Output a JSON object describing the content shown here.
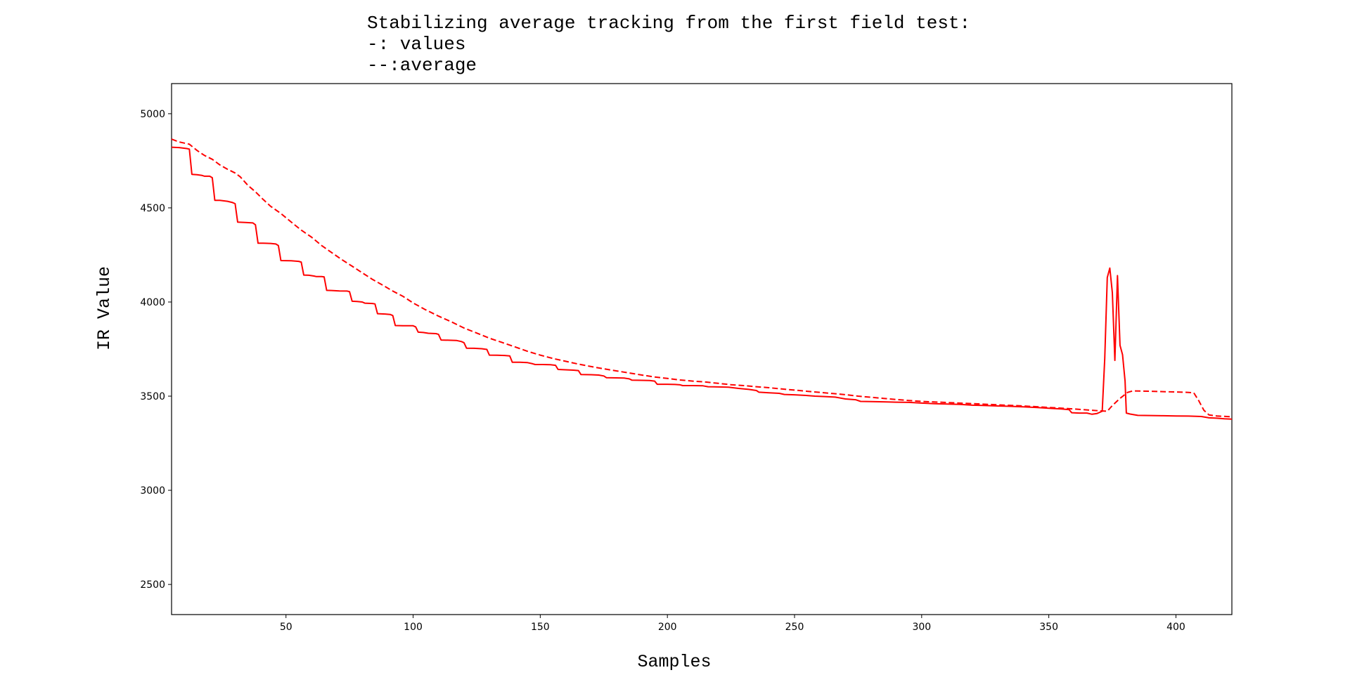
{
  "chart_data": {
    "type": "line",
    "title_lines": [
      "Stabilizing average tracking from the first field test:",
      "-: values",
      "--:average"
    ],
    "xlabel": "Samples",
    "ylabel": "IR Value",
    "xlim": [
      5,
      422
    ],
    "ylim": [
      2340,
      5160
    ],
    "x_ticks": [
      50,
      100,
      150,
      200,
      250,
      300,
      350,
      400
    ],
    "y_ticks": [
      2500,
      3000,
      3500,
      4000,
      4500,
      5000
    ],
    "grid": false,
    "legend": "none",
    "series": [
      {
        "style": "solid",
        "color": "#ff0000",
        "points": [
          [
            5,
            4822
          ],
          [
            8,
            4820
          ],
          [
            11,
            4815
          ],
          [
            12,
            4812
          ],
          [
            13,
            4678
          ],
          [
            15,
            4676
          ],
          [
            17,
            4672
          ],
          [
            18,
            4668
          ],
          [
            20,
            4668
          ],
          [
            21,
            4660
          ],
          [
            22,
            4540
          ],
          [
            24,
            4540
          ],
          [
            27,
            4535
          ],
          [
            29,
            4528
          ],
          [
            30,
            4522
          ],
          [
            31,
            4424
          ],
          [
            34,
            4422
          ],
          [
            37,
            4420
          ],
          [
            38,
            4410
          ],
          [
            39,
            4312
          ],
          [
            41,
            4312
          ],
          [
            44,
            4311
          ],
          [
            46,
            4308
          ],
          [
            47,
            4300
          ],
          [
            48,
            4220
          ],
          [
            52,
            4219
          ],
          [
            55,
            4216
          ],
          [
            56,
            4212
          ],
          [
            57,
            4143
          ],
          [
            59,
            4142
          ],
          [
            61,
            4138
          ],
          [
            62,
            4135
          ],
          [
            64,
            4135
          ],
          [
            65,
            4133
          ],
          [
            66,
            4062
          ],
          [
            68,
            4061
          ],
          [
            71,
            4059
          ],
          [
            74,
            4058
          ],
          [
            75,
            4055
          ],
          [
            76,
            4004
          ],
          [
            78,
            4003
          ],
          [
            80,
            4000
          ],
          [
            81,
            3994
          ],
          [
            84,
            3992
          ],
          [
            85,
            3990
          ],
          [
            86,
            3938
          ],
          [
            89,
            3936
          ],
          [
            91,
            3934
          ],
          [
            92,
            3928
          ],
          [
            93,
            3875
          ],
          [
            96,
            3874
          ],
          [
            98,
            3874
          ],
          [
            100,
            3874
          ],
          [
            101,
            3868
          ],
          [
            102,
            3840
          ],
          [
            104,
            3838
          ],
          [
            106,
            3834
          ],
          [
            109,
            3832
          ],
          [
            110,
            3828
          ],
          [
            111,
            3798
          ],
          [
            114,
            3797
          ],
          [
            117,
            3796
          ],
          [
            119,
            3790
          ],
          [
            120,
            3784
          ],
          [
            121,
            3755
          ],
          [
            124,
            3754
          ],
          [
            127,
            3752
          ],
          [
            129,
            3748
          ],
          [
            130,
            3718
          ],
          [
            133,
            3717
          ],
          [
            136,
            3716
          ],
          [
            138,
            3714
          ],
          [
            139,
            3680
          ],
          [
            142,
            3680
          ],
          [
            145,
            3678
          ],
          [
            147,
            3672
          ],
          [
            148,
            3668
          ],
          [
            151,
            3668
          ],
          [
            154,
            3667
          ],
          [
            156,
            3664
          ],
          [
            157,
            3642
          ],
          [
            160,
            3640
          ],
          [
            163,
            3638
          ],
          [
            165,
            3636
          ],
          [
            166,
            3615
          ],
          [
            170,
            3614
          ],
          [
            173,
            3612
          ],
          [
            175,
            3607
          ],
          [
            176,
            3598
          ],
          [
            180,
            3597
          ],
          [
            183,
            3596
          ],
          [
            185,
            3592
          ],
          [
            186,
            3585
          ],
          [
            190,
            3584
          ],
          [
            193,
            3583
          ],
          [
            195,
            3580
          ],
          [
            196,
            3563
          ],
          [
            200,
            3563
          ],
          [
            203,
            3562
          ],
          [
            205,
            3560
          ],
          [
            206,
            3556
          ],
          [
            210,
            3556
          ],
          [
            214,
            3555
          ],
          [
            216,
            3550
          ],
          [
            220,
            3549
          ],
          [
            224,
            3548
          ],
          [
            228,
            3541
          ],
          [
            232,
            3536
          ],
          [
            235,
            3530
          ],
          [
            236,
            3521
          ],
          [
            240,
            3518
          ],
          [
            244,
            3515
          ],
          [
            246,
            3509
          ],
          [
            250,
            3507
          ],
          [
            254,
            3504
          ],
          [
            258,
            3500
          ],
          [
            262,
            3498
          ],
          [
            266,
            3495
          ],
          [
            268,
            3490
          ],
          [
            270,
            3485
          ],
          [
            274,
            3481
          ],
          [
            276,
            3472
          ],
          [
            280,
            3471
          ],
          [
            285,
            3470
          ],
          [
            290,
            3468
          ],
          [
            295,
            3467
          ],
          [
            300,
            3463
          ],
          [
            305,
            3460
          ],
          [
            310,
            3458
          ],
          [
            315,
            3456
          ],
          [
            320,
            3452
          ],
          [
            325,
            3450
          ],
          [
            330,
            3448
          ],
          [
            335,
            3446
          ],
          [
            340,
            3443
          ],
          [
            345,
            3440
          ],
          [
            350,
            3436
          ],
          [
            355,
            3432
          ],
          [
            358,
            3428
          ],
          [
            359,
            3412
          ],
          [
            362,
            3410
          ],
          [
            365,
            3410
          ],
          [
            367,
            3404
          ],
          [
            369,
            3408
          ],
          [
            371,
            3420
          ],
          [
            372,
            3700
          ],
          [
            373,
            4130
          ],
          [
            374,
            4180
          ],
          [
            375,
            4050
          ],
          [
            376,
            3690
          ],
          [
            377,
            4140
          ],
          [
            378,
            3770
          ],
          [
            379,
            3720
          ],
          [
            380,
            3580
          ],
          [
            380.5,
            3410
          ],
          [
            382,
            3405
          ],
          [
            385,
            3398
          ],
          [
            390,
            3397
          ],
          [
            395,
            3396
          ],
          [
            400,
            3395
          ],
          [
            405,
            3394
          ],
          [
            410,
            3392
          ],
          [
            413,
            3385
          ],
          [
            416,
            3383
          ],
          [
            419,
            3380
          ],
          [
            422,
            3378
          ]
        ]
      },
      {
        "style": "dashed",
        "color": "#ff0000",
        "points": [
          [
            5,
            4865
          ],
          [
            8,
            4850
          ],
          [
            12,
            4838
          ],
          [
            15,
            4805
          ],
          [
            18,
            4778
          ],
          [
            21,
            4758
          ],
          [
            24,
            4728
          ],
          [
            27,
            4705
          ],
          [
            30,
            4685
          ],
          [
            32,
            4665
          ],
          [
            35,
            4620
          ],
          [
            38,
            4585
          ],
          [
            41,
            4545
          ],
          [
            44,
            4508
          ],
          [
            48,
            4470
          ],
          [
            52,
            4425
          ],
          [
            56,
            4382
          ],
          [
            60,
            4345
          ],
          [
            64,
            4300
          ],
          [
            68,
            4262
          ],
          [
            72,
            4225
          ],
          [
            76,
            4190
          ],
          [
            80,
            4155
          ],
          [
            84,
            4120
          ],
          [
            88,
            4090
          ],
          [
            92,
            4058
          ],
          [
            96,
            4030
          ],
          [
            100,
            3995
          ],
          [
            105,
            3958
          ],
          [
            110,
            3925
          ],
          [
            115,
            3895
          ],
          [
            120,
            3862
          ],
          [
            125,
            3835
          ],
          [
            130,
            3808
          ],
          [
            135,
            3785
          ],
          [
            140,
            3762
          ],
          [
            145,
            3738
          ],
          [
            150,
            3718
          ],
          [
            155,
            3700
          ],
          [
            160,
            3685
          ],
          [
            165,
            3670
          ],
          [
            170,
            3657
          ],
          [
            175,
            3645
          ],
          [
            180,
            3634
          ],
          [
            185,
            3623
          ],
          [
            190,
            3612
          ],
          [
            195,
            3602
          ],
          [
            200,
            3594
          ],
          [
            205,
            3586
          ],
          [
            210,
            3580
          ],
          [
            215,
            3575
          ],
          [
            220,
            3568
          ],
          [
            225,
            3561
          ],
          [
            230,
            3556
          ],
          [
            235,
            3550
          ],
          [
            240,
            3545
          ],
          [
            245,
            3538
          ],
          [
            250,
            3532
          ],
          [
            255,
            3526
          ],
          [
            260,
            3520
          ],
          [
            265,
            3514
          ],
          [
            270,
            3508
          ],
          [
            275,
            3500
          ],
          [
            280,
            3494
          ],
          [
            285,
            3488
          ],
          [
            290,
            3482
          ],
          [
            295,
            3477
          ],
          [
            300,
            3472
          ],
          [
            310,
            3466
          ],
          [
            320,
            3460
          ],
          [
            330,
            3454
          ],
          [
            340,
            3448
          ],
          [
            350,
            3440
          ],
          [
            360,
            3432
          ],
          [
            370,
            3422
          ],
          [
            373,
            3420
          ],
          [
            375,
            3450
          ],
          [
            378,
            3488
          ],
          [
            381,
            3520
          ],
          [
            383,
            3528
          ],
          [
            390,
            3526
          ],
          [
            395,
            3524
          ],
          [
            400,
            3522
          ],
          [
            405,
            3520
          ],
          [
            407,
            3518
          ],
          [
            409,
            3475
          ],
          [
            411,
            3425
          ],
          [
            413,
            3400
          ],
          [
            416,
            3395
          ],
          [
            420,
            3392
          ],
          [
            422,
            3390
          ]
        ]
      }
    ]
  }
}
